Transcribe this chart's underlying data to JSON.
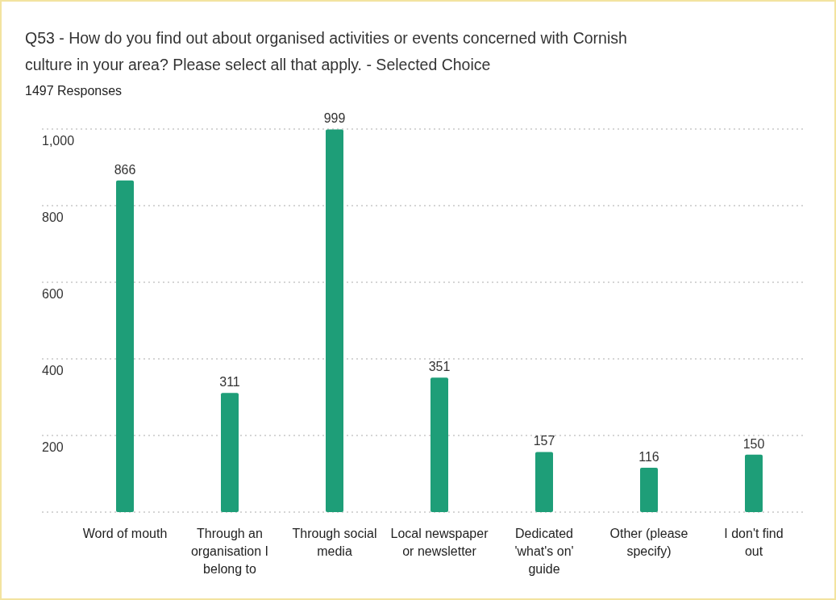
{
  "chart_data": {
    "type": "bar",
    "title": "Q53 - How do you find out about organised activities or events concerned with Cornish culture in your area? Please select all that apply. - Selected Choice",
    "subtitle": "1497 Responses",
    "categories": [
      "Word of mouth",
      "Through an organisation I belong to",
      "Through social media",
      "Local newspaper or newsletter",
      "Dedicated 'what's on' guide",
      "Other (please specify)",
      "I don't find out"
    ],
    "values": [
      866,
      311,
      999,
      351,
      157,
      116,
      150
    ],
    "color": "#1e9e78",
    "ylim": [
      0,
      1000
    ],
    "yticks": [
      {
        "value": 0,
        "label": null
      },
      200,
      400,
      600,
      800,
      {
        "value": 1000,
        "label": "1,000"
      }
    ],
    "grid": "y",
    "data_labels": true
  }
}
